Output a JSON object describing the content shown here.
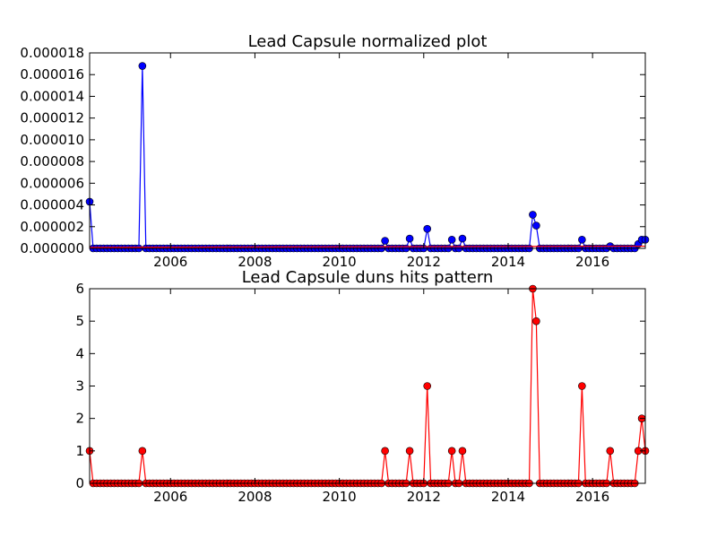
{
  "chart_data": [
    {
      "type": "line",
      "title": "Lead Capsule normalized plot",
      "xlabel": "",
      "ylabel": "",
      "xlim": [
        "2004-02",
        "2017-04"
      ],
      "ylim": [
        0,
        1.8e-05
      ],
      "x_tick_labels": [
        "2006",
        "2008",
        "2010",
        "2012",
        "2014",
        "2016"
      ],
      "y_tick_labels": [
        "0.000000",
        "0.000002",
        "0.000004",
        "0.000006",
        "0.000008",
        "0.000010",
        "0.000012",
        "0.000014",
        "0.000016",
        "0.000018"
      ],
      "grid": false,
      "series": [
        {
          "color": "#0000ff",
          "marker": "circle",
          "points": [
            [
              "2004-02",
              4.3e-06
            ],
            [
              "2005-05",
              1.68e-05
            ],
            [
              "2011-02",
              7e-07
            ],
            [
              "2011-09",
              9e-07
            ],
            [
              "2012-02",
              1.8e-06
            ],
            [
              "2012-09",
              8e-07
            ],
            [
              "2012-12",
              9e-07
            ],
            [
              "2014-08",
              3.1e-06
            ],
            [
              "2014-09",
              2.1e-06
            ],
            [
              "2015-10",
              8e-07
            ],
            [
              "2016-06",
              2e-07
            ],
            [
              "2017-02",
              4e-07
            ],
            [
              "2017-03",
              8e-07
            ],
            [
              "2017-04",
              8e-07
            ]
          ]
        },
        {
          "color": "#ff0000",
          "marker": "none",
          "points": [
            [
              "2004-02",
              1e-07
            ],
            [
              "2017-04",
              2e-07
            ]
          ]
        }
      ]
    },
    {
      "type": "line",
      "title": "Lead Capsule duns hits pattern",
      "xlabel": "",
      "ylabel": "",
      "xlim": [
        "2004-02",
        "2017-04"
      ],
      "ylim": [
        0,
        6
      ],
      "x_tick_labels": [
        "2006",
        "2008",
        "2010",
        "2012",
        "2014",
        "2016"
      ],
      "y_tick_labels": [
        "0",
        "1",
        "2",
        "3",
        "4",
        "5",
        "6"
      ],
      "grid": false,
      "series": [
        {
          "color": "#ff0000",
          "marker": "circle",
          "points": [
            [
              "2004-02",
              1
            ],
            [
              "2005-05",
              1
            ],
            [
              "2011-02",
              1
            ],
            [
              "2011-09",
              1
            ],
            [
              "2012-02",
              3
            ],
            [
              "2012-09",
              1
            ],
            [
              "2012-12",
              1
            ],
            [
              "2014-08",
              6
            ],
            [
              "2014-09",
              5
            ],
            [
              "2015-10",
              3
            ],
            [
              "2016-06",
              1
            ],
            [
              "2017-02",
              1
            ],
            [
              "2017-03",
              2
            ],
            [
              "2017-04",
              1
            ]
          ]
        }
      ]
    }
  ]
}
